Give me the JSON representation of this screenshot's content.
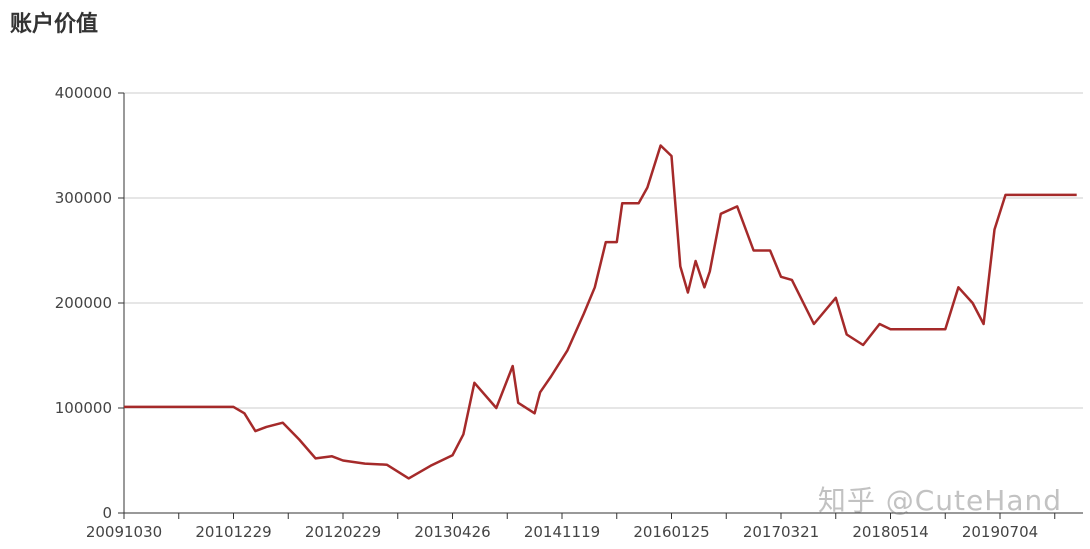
{
  "page": {
    "watermark": "知乎 @CuteHand"
  },
  "chart_data": {
    "type": "line",
    "title": "账户价值",
    "xlabel": "",
    "ylabel": "",
    "ylim": [
      0,
      400000
    ],
    "yticks": [
      0,
      100000,
      200000,
      300000,
      400000
    ],
    "ytick_labels": [
      "0",
      "100000",
      "200000",
      "300000",
      "400000"
    ],
    "xtick_labels": [
      "20091030",
      "20101229",
      "20120229",
      "20130426",
      "20141119",
      "20160125",
      "20170321",
      "20180514",
      "20190704"
    ],
    "grid": "horizontal",
    "colors": {
      "line": "#a52a2a",
      "grid": "#cccccc",
      "axis": "#333333"
    },
    "x_position_unit": "tick index (0 = 20091030, 8 = 20190704)",
    "x": [
      0,
      1.0,
      1.1,
      1.2,
      1.3,
      1.45,
      1.6,
      1.75,
      1.9,
      2.0,
      2.2,
      2.4,
      2.6,
      2.8,
      3.0,
      3.1,
      3.2,
      3.4,
      3.55,
      3.6,
      3.75,
      3.8,
      3.9,
      4.05,
      4.2,
      4.3,
      4.4,
      4.5,
      4.55,
      4.7,
      4.78,
      4.9,
      5.0,
      5.08,
      5.15,
      5.22,
      5.3,
      5.35,
      5.45,
      5.6,
      5.75,
      5.9,
      6.0,
      6.1,
      6.3,
      6.5,
      6.6,
      6.75,
      6.9,
      7.0,
      7.05,
      7.1,
      7.2,
      7.3,
      7.4,
      7.5,
      7.62,
      7.75,
      7.85,
      7.95,
      8.05,
      8.15,
      8.22,
      8.35,
      8.7
    ],
    "y": [
      101000,
      101000,
      95000,
      78000,
      82000,
      86000,
      70000,
      52000,
      54000,
      50000,
      47000,
      46000,
      33000,
      45000,
      55000,
      75000,
      124000,
      100000,
      140000,
      105000,
      95000,
      115000,
      130000,
      155000,
      190000,
      215000,
      258000,
      258000,
      295000,
      295000,
      310000,
      350000,
      340000,
      235000,
      210000,
      240000,
      215000,
      230000,
      285000,
      292000,
      250000,
      250000,
      225000,
      222000,
      180000,
      205000,
      170000,
      160000,
      180000,
      175000,
      175000,
      175000,
      175000,
      175000,
      175000,
      175000,
      215000,
      200000,
      180000,
      270000,
      303000,
      303000,
      303000,
      303000,
      303000
    ]
  }
}
